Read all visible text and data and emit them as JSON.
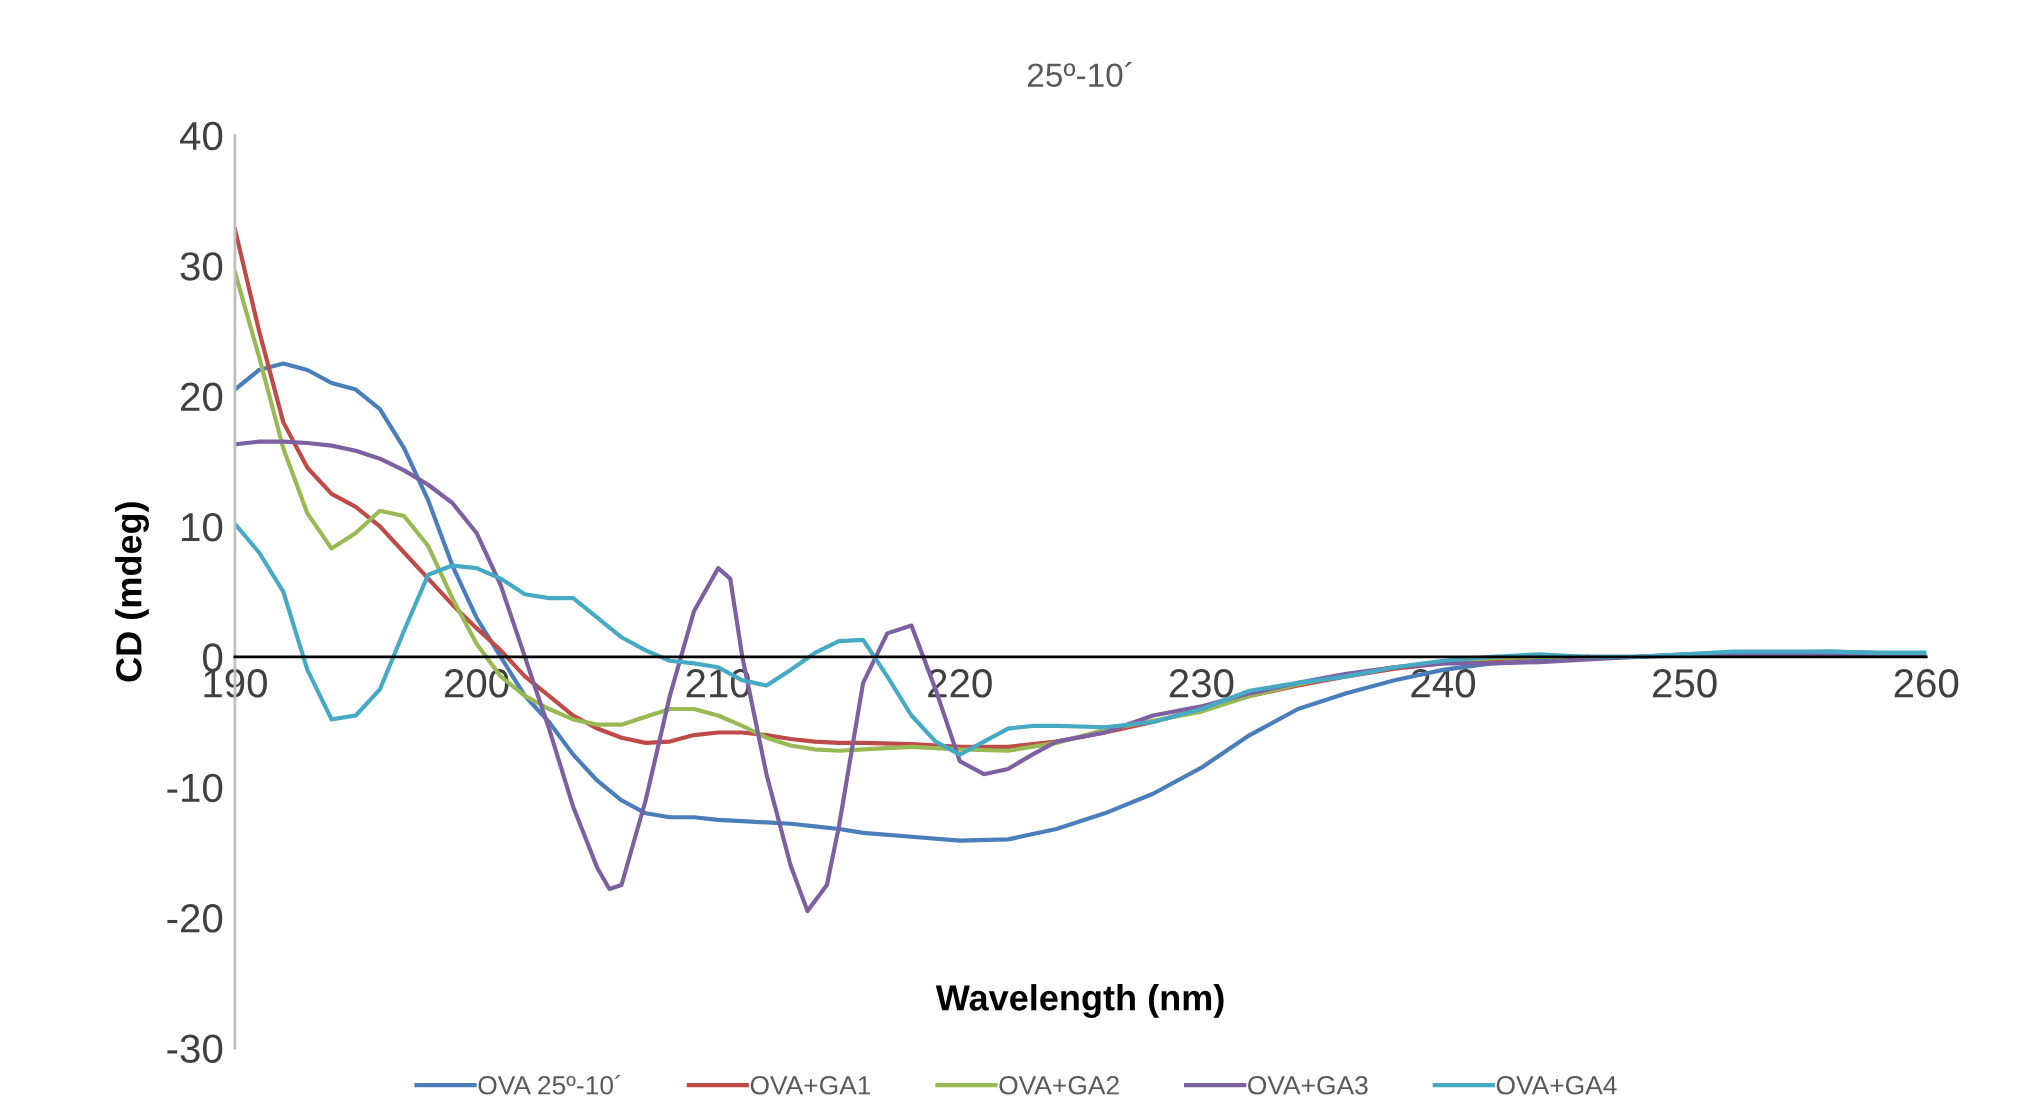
{
  "chart_data": {
    "type": "line",
    "title": "25º-10´",
    "xlabel": "Wavelength (nm)",
    "ylabel": "CD (mdeg)",
    "xlim": [
      190,
      260
    ],
    "ylim": [
      -30,
      40
    ],
    "xticks": [
      190,
      200,
      210,
      220,
      230,
      240,
      250,
      260
    ],
    "yticks": [
      -30,
      -20,
      -10,
      0,
      10,
      20,
      30,
      40
    ],
    "grid": false,
    "legend": "bottom",
    "marker": "none",
    "line_style": "solid",
    "series": [
      {
        "name": "OVA 25º-10´",
        "color": "#4a7ebb",
        "x": [
          190,
          191,
          192,
          193,
          194,
          195,
          196,
          197,
          198,
          199,
          200,
          201,
          202,
          203,
          204,
          205,
          206,
          207,
          208,
          209,
          210,
          211,
          212,
          213,
          214,
          215,
          216,
          218,
          220,
          222,
          224,
          226,
          228,
          230,
          232,
          234,
          236,
          238,
          240,
          242,
          244,
          246,
          248,
          250,
          252,
          254,
          256,
          258,
          260
        ],
        "values": [
          20.5,
          22,
          22.5,
          22,
          21,
          20.5,
          19,
          16,
          12,
          7,
          3,
          0,
          -3,
          -5,
          -7.5,
          -9.5,
          -11,
          -12,
          -12.3,
          -12.3,
          -12.5,
          -12.6,
          -12.7,
          -12.8,
          -13,
          -13.2,
          -13.5,
          -13.8,
          -14.1,
          -14,
          -13.2,
          -12,
          -10.5,
          -8.5,
          -6,
          -4,
          -2.8,
          -1.8,
          -1,
          -0.5,
          -0.3,
          0,
          0,
          0.2,
          0.3,
          0.3,
          0.4,
          0.3,
          0.3
        ]
      },
      {
        "name": "OVA+GA1",
        "color": "#be4b48",
        "x": [
          190,
          191,
          192,
          193,
          194,
          195,
          196,
          197,
          198,
          199,
          200,
          201,
          202,
          203,
          204,
          205,
          206,
          207,
          208,
          209,
          210,
          211,
          212,
          213,
          214,
          215,
          216,
          218,
          220,
          222,
          224,
          226,
          228,
          230,
          232,
          234,
          236,
          238,
          240,
          242,
          244,
          246
        ],
        "values": [
          32.8,
          25,
          18,
          14.5,
          12.5,
          11.5,
          10,
          8,
          6,
          4,
          2.2,
          0.5,
          -1.5,
          -3,
          -4.5,
          -5.5,
          -6.2,
          -6.6,
          -6.5,
          -6,
          -5.8,
          -5.8,
          -6,
          -6.3,
          -6.5,
          -6.6,
          -6.6,
          -6.7,
          -6.9,
          -6.9,
          -6.5,
          -5.8,
          -5,
          -4,
          -3,
          -2.2,
          -1.5,
          -0.9,
          -0.5,
          -0.2,
          0,
          0
        ]
      },
      {
        "name": "OVA+GA2",
        "color": "#98b954",
        "x": [
          190,
          191,
          192,
          193,
          194,
          195,
          196,
          197,
          198,
          199,
          200,
          201,
          202,
          203,
          204,
          205,
          206,
          207,
          208,
          209,
          210,
          211,
          212,
          213,
          214,
          215,
          216,
          218,
          220,
          222,
          224,
          226,
          228,
          230,
          232,
          234,
          236,
          238,
          240,
          242,
          244,
          246
        ],
        "values": [
          29.5,
          23,
          16,
          11,
          8.3,
          9.5,
          11.2,
          10.8,
          8.5,
          4.5,
          1,
          -1.5,
          -3,
          -4,
          -4.8,
          -5.2,
          -5.2,
          -4.6,
          -4,
          -4,
          -4.5,
          -5.3,
          -6.2,
          -6.8,
          -7.1,
          -7.2,
          -7.1,
          -6.9,
          -7.1,
          -7.2,
          -6.6,
          -5.6,
          -4.9,
          -4.2,
          -3,
          -2.1,
          -1.4,
          -0.8,
          -0.4,
          -0.1,
          0,
          0
        ]
      },
      {
        "name": "OVA+GA3",
        "color": "#7d60a0",
        "x": [
          190,
          191,
          192,
          193,
          194,
          195,
          196,
          197,
          198,
          199,
          200,
          201,
          202,
          203,
          204,
          205,
          205.5,
          206,
          207,
          208,
          209,
          210,
          210.5,
          211,
          212,
          213,
          213.7,
          214.5,
          215,
          216,
          217,
          218,
          219,
          220,
          221,
          222,
          223,
          224,
          226,
          228,
          230,
          232,
          234,
          236,
          238,
          240,
          242,
          244,
          246,
          248,
          250,
          252,
          254,
          256,
          258,
          260
        ],
        "values": [
          16.3,
          16.5,
          16.5,
          16.4,
          16.2,
          15.8,
          15.2,
          14.3,
          13.2,
          11.8,
          9.5,
          5.5,
          0,
          -5.5,
          -11.5,
          -16.2,
          -17.8,
          -17.5,
          -11,
          -3,
          3.5,
          6.8,
          6,
          0,
          -9,
          -16,
          -19.5,
          -17.5,
          -13,
          -2,
          1.8,
          2.4,
          -2.5,
          -8,
          -9,
          -8.6,
          -7.5,
          -6.5,
          -5.8,
          -4.5,
          -3.8,
          -2.8,
          -2,
          -1.3,
          -0.8,
          -0.5,
          -0.5,
          -0.4,
          -0.2,
          0,
          0.1,
          0.1,
          0.2,
          0.2,
          0.2,
          0.2
        ]
      },
      {
        "name": "OVA+GA4",
        "color": "#46aac5",
        "x": [
          190,
          191,
          192,
          193,
          194,
          195,
          196,
          197,
          198,
          199,
          200,
          201,
          202,
          203,
          204,
          205,
          206,
          207,
          208,
          209,
          210,
          211,
          212,
          213,
          214,
          215,
          216,
          217,
          218,
          219,
          220,
          221,
          222,
          223,
          224,
          226,
          228,
          230,
          232,
          234,
          236,
          238,
          240,
          242,
          244,
          246,
          248,
          250,
          252,
          254,
          256,
          258,
          260
        ],
        "values": [
          10.2,
          8,
          5,
          -1,
          -4.8,
          -4.5,
          -2.5,
          2,
          6.3,
          7,
          6.8,
          6,
          4.8,
          4.5,
          4.5,
          3,
          1.5,
          0.5,
          -0.3,
          -0.5,
          -0.8,
          -1.8,
          -2.2,
          -1,
          0.3,
          1.2,
          1.3,
          -1.5,
          -4.5,
          -6.5,
          -7.5,
          -6.5,
          -5.5,
          -5.3,
          -5.3,
          -5.4,
          -5,
          -4,
          -2.6,
          -2,
          -1.5,
          -0.8,
          -0.3,
          0,
          0.2,
          0,
          0,
          0.2,
          0.4,
          0.4,
          0.4,
          0.3,
          0.3
        ]
      }
    ]
  }
}
